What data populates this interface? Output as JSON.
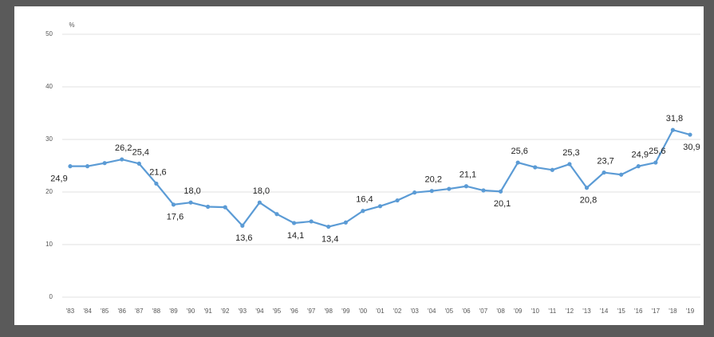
{
  "chart_data": {
    "type": "line",
    "y_unit": "%",
    "categories": [
      "'83",
      "'84",
      "'85",
      "'86",
      "'87",
      "'88",
      "'89",
      "'90",
      "'91",
      "'92",
      "'93",
      "'94",
      "'95",
      "'96",
      "'97",
      "'98",
      "'99",
      "'00",
      "'01",
      "'02",
      "'03",
      "'04",
      "'05",
      "'06",
      "'07",
      "'08",
      "'09",
      "'10",
      "'11",
      "'12",
      "'13",
      "'14",
      "'15",
      "'16",
      "'17",
      "'18",
      "'19"
    ],
    "series": [
      {
        "color": "#5b9bd5",
        "values": [
          24.9,
          24.9,
          25.5,
          26.2,
          25.4,
          21.6,
          17.6,
          18.0,
          17.2,
          17.1,
          13.6,
          18.0,
          15.8,
          14.1,
          14.4,
          13.4,
          14.2,
          16.4,
          17.3,
          18.4,
          19.9,
          20.2,
          20.6,
          21.1,
          20.3,
          20.1,
          25.6,
          24.7,
          24.2,
          25.3,
          20.8,
          23.7,
          23.3,
          24.9,
          25.6,
          31.8,
          30.9
        ],
        "value_labels": [
          "24,9",
          null,
          null,
          "26,2",
          "25,4",
          "21,6",
          "17,6",
          "18,0",
          null,
          null,
          "13,6",
          "18,0",
          null,
          "14,1",
          null,
          "13,4",
          null,
          "16,4",
          null,
          null,
          null,
          "20,2",
          null,
          "21,1",
          null,
          "20,1",
          "25,6",
          null,
          null,
          "25,3",
          "20,8",
          "23,7",
          null,
          "24,9",
          "25,6",
          "31,8",
          "30,9"
        ]
      }
    ],
    "ylim": [
      0,
      50
    ],
    "yticks": [
      0,
      10,
      20,
      30,
      40,
      50
    ],
    "grid": true
  }
}
